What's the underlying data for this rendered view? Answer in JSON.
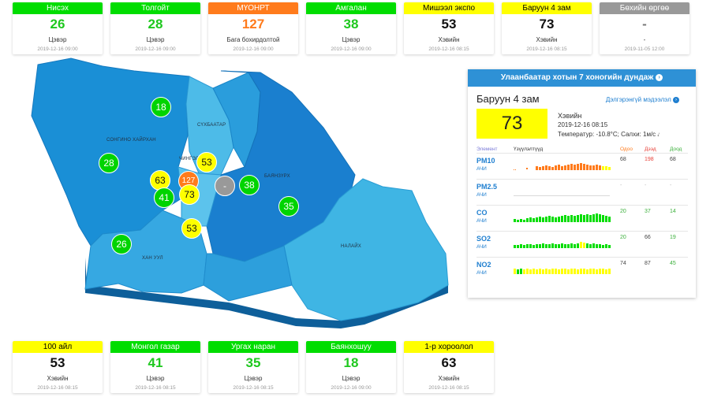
{
  "top_stations": [
    {
      "name": "Нисэх",
      "value": "26",
      "status": "Цэвэр",
      "time": "2019-12-16 09:00",
      "level": "green"
    },
    {
      "name": "Толгойт",
      "value": "28",
      "status": "Цэвэр",
      "time": "2019-12-16 09:00",
      "level": "green"
    },
    {
      "name": "МҮОНРТ",
      "value": "127",
      "status": "Бага бохирдолтой",
      "time": "2019-12-16 09:00",
      "level": "orange"
    },
    {
      "name": "Амгалан",
      "value": "38",
      "status": "Цэвэр",
      "time": "2019-12-16 09:00",
      "level": "green"
    },
    {
      "name": "Мишээл экспо",
      "value": "53",
      "status": "Хэвийн",
      "time": "2019-12-16 08:15",
      "level": "yellow"
    },
    {
      "name": "Баруун 4 зам",
      "value": "73",
      "status": "Хэвийн",
      "time": "2019-12-16 08:15",
      "level": "yellow"
    },
    {
      "name": "Бөхийн өргөө",
      "value": "-",
      "status": "-",
      "time": "2019-11-05 12:00",
      "level": "gray"
    }
  ],
  "bottom_stations": [
    {
      "name": "100 айл",
      "value": "53",
      "status": "Хэвийн",
      "time": "2019-12-16 08:15",
      "level": "yellow"
    },
    {
      "name": "Монгол газар",
      "value": "41",
      "status": "Цэвэр",
      "time": "2019-12-16 08:15",
      "level": "green"
    },
    {
      "name": "Ургах наран",
      "value": "35",
      "status": "Цэвэр",
      "time": "2019-12-16 08:15",
      "level": "green"
    },
    {
      "name": "Баянхошуу",
      "value": "18",
      "status": "Цэвэр",
      "time": "2019-12-16 09:00",
      "level": "green"
    },
    {
      "name": "1-р хороолол",
      "value": "63",
      "status": "Хэвийн",
      "time": "2019-12-16 08:15",
      "level": "yellow"
    }
  ],
  "map": {
    "regions": [
      "СОНГИНО ХАЙРХАН",
      "СҮХБААТАР",
      "ЧИНГЭЛТЭЙ",
      "БАЯНЗҮРХ",
      "ХАН УУЛ",
      "НАЛАЙХ"
    ],
    "markers": [
      {
        "value": "18",
        "level": "green"
      },
      {
        "value": "28",
        "level": "green"
      },
      {
        "value": "63",
        "level": "yellow"
      },
      {
        "value": "127",
        "level": "orange"
      },
      {
        "value": "53",
        "level": "yellow"
      },
      {
        "value": "-",
        "level": "gray"
      },
      {
        "value": "38",
        "level": "green"
      },
      {
        "value": "41",
        "level": "green"
      },
      {
        "value": "73",
        "level": "yellow"
      },
      {
        "value": "35",
        "level": "green"
      },
      {
        "value": "53",
        "level": "yellow"
      },
      {
        "value": "26",
        "level": "green"
      }
    ]
  },
  "panel": {
    "title": "Улаанбаатар хотын 7 хоногийн дундаж",
    "station": "Баруун 4 зам",
    "detail_link": "Дэлгэрэнгүй мэдээлэл",
    "value": "73",
    "status": "Хэвийн",
    "time": "2019-12-16 08:15",
    "weather": "Температур: -10.8°C; Салхи: 1м/с",
    "columns": {
      "element": "Элемент",
      "history": "Үзүүлэлтүүд",
      "current": "Одоо",
      "max": "Дээд",
      "min": "Доод"
    },
    "pollutants": [
      {
        "name": "PM10",
        "unit": "АЧИ",
        "current": "68",
        "max": "198",
        "min": "68"
      },
      {
        "name": "PM2.5",
        "unit": "АЧИ",
        "current": "-",
        "max": "-",
        "min": "-"
      },
      {
        "name": "CO",
        "unit": "АЧИ",
        "current": "20",
        "max": "37",
        "min": "14"
      },
      {
        "name": "SO2",
        "unit": "АЧИ",
        "current": "20",
        "max": "66",
        "min": "19"
      },
      {
        "name": "NO2",
        "unit": "АЧИ",
        "current": "74",
        "max": "87",
        "min": "45"
      }
    ]
  },
  "colors": {
    "green": "#00dd00",
    "yellow": "#ffff00",
    "orange": "#ff7b1c",
    "gray": "#999999",
    "accent": "#2e91d6",
    "map_dark": "#1a7fcf",
    "map_light": "#3fb5e4"
  }
}
